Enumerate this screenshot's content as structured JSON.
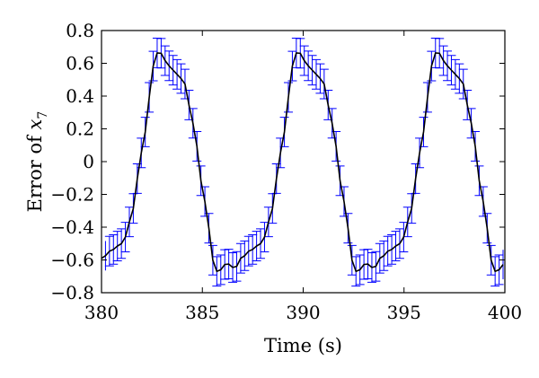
{
  "chart_data": {
    "type": "line",
    "title": "",
    "xlabel": "Time (s)",
    "ylabel_prefix": "Error of ",
    "ylabel_var": "x",
    "ylabel_sub": "7",
    "xlim": [
      380,
      400
    ],
    "ylim": [
      -0.8,
      0.8
    ],
    "x_ticks": [
      380,
      385,
      390,
      395,
      400
    ],
    "x_tick_labels": [
      "380",
      "385",
      "390",
      "395",
      "400"
    ],
    "y_ticks": [
      0.8,
      0.6,
      0.4,
      0.2,
      0,
      -0.2,
      -0.4,
      -0.6,
      -0.8
    ],
    "y_tick_labels": [
      "0.8",
      "0.6",
      "0.4",
      "0.2",
      "0",
      "−0.2",
      "−0.4",
      "−0.6",
      "−0.8"
    ],
    "grid": false,
    "series": [
      {
        "style": "mean line with error bars",
        "line_color": "#000000",
        "errorbar_color": "#0000ff",
        "errorbar_halfwidth": 0.09,
        "period": 6.9,
        "points_per_period": 35,
        "x_start": 380.0,
        "x_end": 400.0,
        "cycle_shape": [
          [
            0.0,
            -0.65
          ],
          [
            0.4,
            -0.58
          ],
          [
            0.8,
            -0.54
          ],
          [
            1.2,
            -0.51
          ],
          [
            1.5,
            -0.46
          ],
          [
            1.8,
            -0.32
          ],
          [
            2.1,
            -0.1
          ],
          [
            2.4,
            0.15
          ],
          [
            2.7,
            0.4
          ],
          [
            2.9,
            0.6
          ],
          [
            3.1,
            0.67
          ],
          [
            3.3,
            0.66
          ],
          [
            3.5,
            0.61
          ],
          [
            3.8,
            0.56
          ],
          [
            4.1,
            0.53
          ],
          [
            4.4,
            0.48
          ],
          [
            4.7,
            0.33
          ],
          [
            5.0,
            0.1
          ],
          [
            5.3,
            -0.15
          ],
          [
            5.6,
            -0.4
          ],
          [
            5.8,
            -0.6
          ],
          [
            6.0,
            -0.67
          ],
          [
            6.2,
            -0.66
          ],
          [
            6.5,
            -0.62
          ],
          [
            6.9,
            -0.65
          ]
        ],
        "cycle_offset": 0.3
      }
    ]
  }
}
